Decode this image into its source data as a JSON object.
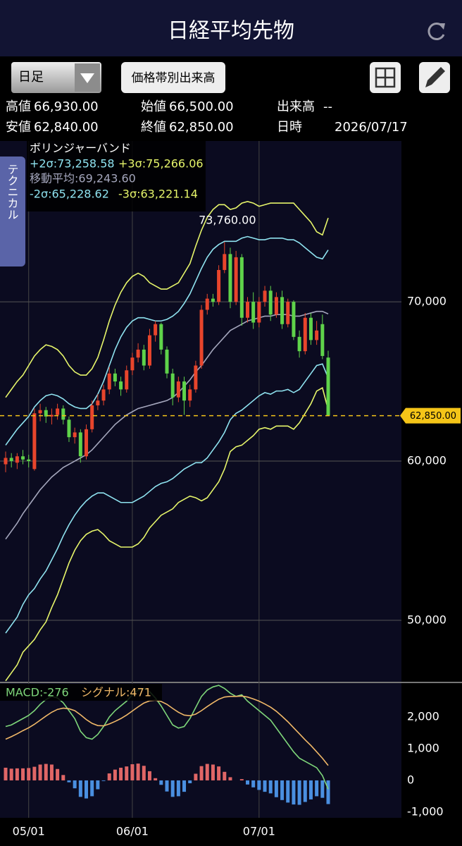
{
  "header": {
    "title": "日経平均先物"
  },
  "toolbar": {
    "period": "日足",
    "volume_button": "価格帯別出来高"
  },
  "info": [
    {
      "label": "高値",
      "value": "66,930.00"
    },
    {
      "label": "始値",
      "value": "66,500.00"
    },
    {
      "label": "出来高",
      "value": "--"
    },
    {
      "label": "安値",
      "value": "62,840.00"
    },
    {
      "label": "終値",
      "value": "62,850.00"
    },
    {
      "label": "日時",
      "value": "2026/07/17"
    }
  ],
  "side_tab": "テクニカル",
  "chart_data": [
    {
      "type": "candlestick",
      "legend_title": "ボリンジャーバンド",
      "categories": [
        null,
        null,
        null,
        null,
        "05/01",
        null,
        null,
        null,
        null,
        null,
        null,
        null,
        null,
        null,
        null,
        null,
        null,
        null,
        null,
        null,
        null,
        null,
        "06/01",
        null,
        null,
        null,
        null,
        null,
        null,
        null,
        null,
        null,
        null,
        null,
        null,
        null,
        null,
        null,
        null,
        null,
        null,
        null,
        null,
        null,
        "07/01",
        null,
        null,
        null,
        null,
        null,
        null,
        null,
        null,
        null,
        null,
        null,
        null
      ],
      "open": [
        59800,
        60200,
        59900,
        60300,
        60100,
        59500,
        63000,
        63200,
        62800,
        62900,
        63300,
        62600,
        61500,
        61800,
        60300,
        62000,
        63500,
        63800,
        64500,
        65500,
        65000,
        64500,
        65700,
        66500,
        67000,
        66000,
        67900,
        68600,
        67000,
        65500,
        64000,
        65000,
        63800,
        64500,
        66000,
        69500,
        70200,
        70000,
        72000,
        73000,
        70000,
        72800,
        69000,
        70000,
        68700,
        70000,
        70700,
        69200,
        70300,
        68600,
        70000,
        67800,
        66900,
        69000,
        67600,
        68600,
        66500
      ],
      "high": [
        60600,
        60500,
        60500,
        60700,
        60400,
        63300,
        63600,
        63400,
        63300,
        63600,
        63500,
        62800,
        62100,
        62000,
        62300,
        63800,
        64200,
        64800,
        65900,
        65800,
        65300,
        66000,
        66800,
        67400,
        67300,
        68300,
        68800,
        68700,
        67200,
        65800,
        65300,
        65300,
        64800,
        66300,
        69800,
        70500,
        70500,
        72300,
        73760,
        73400,
        73200,
        73000,
        70300,
        70600,
        70300,
        71000,
        71000,
        70600,
        70700,
        70200,
        70100,
        68200,
        69300,
        69300,
        68800,
        69200,
        66930
      ],
      "low": [
        59300,
        59600,
        59500,
        59800,
        59600,
        59400,
        62500,
        62400,
        62300,
        62600,
        62300,
        61200,
        61100,
        59900,
        60100,
        61800,
        63200,
        63500,
        64200,
        64700,
        64100,
        64300,
        65400,
        66200,
        65700,
        65800,
        67500,
        66700,
        65200,
        63500,
        63700,
        62900,
        63400,
        64300,
        65800,
        69200,
        69700,
        69800,
        71800,
        69600,
        69800,
        68500,
        68700,
        68300,
        68400,
        69700,
        68800,
        69000,
        68300,
        68400,
        67600,
        66500,
        66700,
        67300,
        67300,
        66400,
        62840
      ],
      "close": [
        60200,
        60000,
        60300,
        60100,
        60000,
        63000,
        63200,
        62800,
        62900,
        63300,
        62600,
        61500,
        61800,
        60300,
        62000,
        63500,
        63800,
        64500,
        65500,
        65000,
        64500,
        65700,
        66500,
        67000,
        66000,
        67900,
        68600,
        67000,
        65500,
        64000,
        65000,
        63800,
        64500,
        66000,
        69500,
        70200,
        70000,
        72000,
        73000,
        70000,
        72800,
        69000,
        70000,
        68700,
        70000,
        70700,
        69200,
        70300,
        68600,
        70000,
        67800,
        66900,
        69000,
        67600,
        68200,
        66600,
        62850
      ],
      "up_color": "#e8452c",
      "down_color": "#5fd34a",
      "series": [
        {
          "name": "+2σ:73,258.58",
          "color": "#8fe3f0",
          "values": [
            61000,
            61500,
            62000,
            62400,
            62800,
            63400,
            63800,
            64100,
            64200,
            64100,
            63900,
            63600,
            63400,
            63300,
            63300,
            63600,
            64200,
            65000,
            66000,
            67000,
            67800,
            68400,
            68800,
            69000,
            69000,
            68900,
            68800,
            68800,
            68900,
            69100,
            69400,
            69900,
            70500,
            71300,
            72100,
            72800,
            73300,
            73600,
            73800,
            73800,
            73800,
            74000,
            74100,
            74000,
            73900,
            73900,
            74000,
            74000,
            74000,
            73900,
            73900,
            73700,
            73400,
            73100,
            72800,
            72700,
            73258.58
          ]
        },
        {
          "name": "+3σ:75,266.06",
          "color": "#e6f56a",
          "values": [
            64000,
            64500,
            65000,
            65400,
            66000,
            66600,
            67000,
            67300,
            67200,
            67000,
            66600,
            66000,
            65600,
            65400,
            65400,
            65800,
            66500,
            67600,
            68800,
            69800,
            70600,
            71200,
            71600,
            71800,
            71600,
            71200,
            71000,
            70800,
            70800,
            71000,
            71200,
            71800,
            72400,
            73500,
            74500,
            75300,
            75800,
            76100,
            76100,
            75800,
            75900,
            76200,
            76300,
            76200,
            76000,
            76100,
            76200,
            76200,
            76200,
            76200,
            76200,
            75800,
            75400,
            75000,
            74400,
            74200,
            75266.06
          ]
        },
        {
          "name": "移動平均:69,243.60",
          "color": "#a4a6bc",
          "values": [
            55100,
            55600,
            56100,
            56700,
            57200,
            57700,
            58200,
            58600,
            59000,
            59300,
            59600,
            59800,
            60000,
            60200,
            60400,
            60700,
            61100,
            61500,
            61900,
            62300,
            62600,
            62900,
            63100,
            63300,
            63400,
            63500,
            63600,
            63700,
            63800,
            64000,
            64300,
            64700,
            65100,
            65600,
            66000,
            66500,
            67000,
            67400,
            67800,
            68200,
            68400,
            68600,
            68800,
            68900,
            69000,
            69100,
            69100,
            69200,
            69200,
            69200,
            69100,
            69100,
            69200,
            69300,
            69400,
            69400,
            69243.6
          ]
        },
        {
          "name": "-2σ:65,228.62",
          "color": "#8fe3f0",
          "values": [
            49200,
            49700,
            50200,
            51000,
            51600,
            52000,
            52600,
            53100,
            53800,
            54500,
            55300,
            56000,
            56600,
            57100,
            57500,
            57800,
            58000,
            58000,
            57800,
            57600,
            57400,
            57400,
            57400,
            57600,
            57800,
            58100,
            58400,
            58600,
            58700,
            58900,
            59200,
            59500,
            59700,
            59900,
            59900,
            60200,
            60700,
            61200,
            61800,
            62600,
            63000,
            63200,
            63500,
            63800,
            64100,
            64300,
            64200,
            64400,
            64400,
            64500,
            64300,
            64500,
            65000,
            65500,
            66000,
            66100,
            65228.62
          ]
        },
        {
          "name": "-3σ:63,221.14",
          "color": "#e6f56a",
          "values": [
            46200,
            46700,
            47200,
            48000,
            48400,
            48800,
            49400,
            49900,
            50800,
            51600,
            52600,
            53600,
            54400,
            55000,
            55400,
            55600,
            55700,
            55400,
            55000,
            54800,
            54600,
            54600,
            54600,
            54800,
            55200,
            55800,
            56200,
            56600,
            56800,
            57000,
            57400,
            57600,
            57800,
            57700,
            57500,
            57700,
            58200,
            58700,
            59500,
            60600,
            60900,
            61000,
            61300,
            61600,
            62000,
            62100,
            62000,
            62200,
            62200,
            62200,
            62000,
            62400,
            63000,
            63600,
            64400,
            64600,
            63221.14
          ]
        }
      ],
      "annotation": {
        "value": 73760,
        "label": "73,760.00"
      },
      "last_price": {
        "value": 62850,
        "label": "62,850.00",
        "color": "#f5c518"
      },
      "ylim": [
        46100,
        80100
      ],
      "yticks": [
        {
          "value": 50000,
          "label": "50,000"
        },
        {
          "value": 60000,
          "label": "60,000"
        },
        {
          "value": 70000,
          "label": "70,000"
        }
      ],
      "grid": true
    },
    {
      "type": "macd",
      "series": [
        {
          "name": "MACD:-276",
          "color": "#7ed67a",
          "values": [
            1700,
            1750,
            1850,
            1950,
            2050,
            2200,
            2400,
            2550,
            2650,
            2600,
            2450,
            2200,
            1950,
            1550,
            1350,
            1300,
            1450,
            1700,
            2000,
            2200,
            2350,
            2500,
            2700,
            2850,
            2900,
            2800,
            2600,
            2350,
            2050,
            1750,
            1650,
            1700,
            1950,
            2300,
            2650,
            2850,
            2950,
            3000,
            2900,
            2750,
            2650,
            2700,
            2500,
            2350,
            2200,
            2050,
            1900,
            1650,
            1400,
            1150,
            900,
            700,
            600,
            500,
            400,
            150,
            -276
          ]
        },
        {
          "name": "シグナル:471",
          "color": "#f0b868",
          "values": [
            1300,
            1380,
            1470,
            1570,
            1660,
            1770,
            1900,
            2030,
            2150,
            2240,
            2280,
            2260,
            2200,
            2070,
            1920,
            1800,
            1730,
            1720,
            1780,
            1860,
            1950,
            2060,
            2190,
            2320,
            2440,
            2510,
            2530,
            2490,
            2400,
            2270,
            2150,
            2060,
            2040,
            2090,
            2200,
            2330,
            2450,
            2560,
            2630,
            2650,
            2650,
            2660,
            2630,
            2570,
            2500,
            2410,
            2310,
            2180,
            2020,
            1850,
            1660,
            1470,
            1280,
            1100,
            900,
            700,
            471
          ]
        }
      ],
      "histogram": [
        400,
        370,
        380,
        380,
        390,
        430,
        500,
        520,
        500,
        360,
        170,
        -60,
        -250,
        -520,
        -570,
        -500,
        -280,
        -20,
        220,
        340,
        400,
        440,
        510,
        530,
        460,
        290,
        70,
        -140,
        -350,
        -520,
        -500,
        -360,
        -90,
        210,
        450,
        520,
        500,
        440,
        270,
        100,
        0,
        40,
        -130,
        -220,
        -300,
        -360,
        -410,
        -530,
        -620,
        -700,
        -760,
        -770,
        -680,
        -600,
        -500,
        -550,
        -747
      ],
      "positive_color": "#e06666",
      "negative_color": "#4a8fe0",
      "ylim": [
        -1180,
        3090
      ],
      "yticks": [
        {
          "value": 2000,
          "label": "2,000"
        },
        {
          "value": 1000,
          "label": "1,000"
        },
        0,
        {
          "value": -1000,
          "label": "-1,000"
        }
      ]
    }
  ]
}
